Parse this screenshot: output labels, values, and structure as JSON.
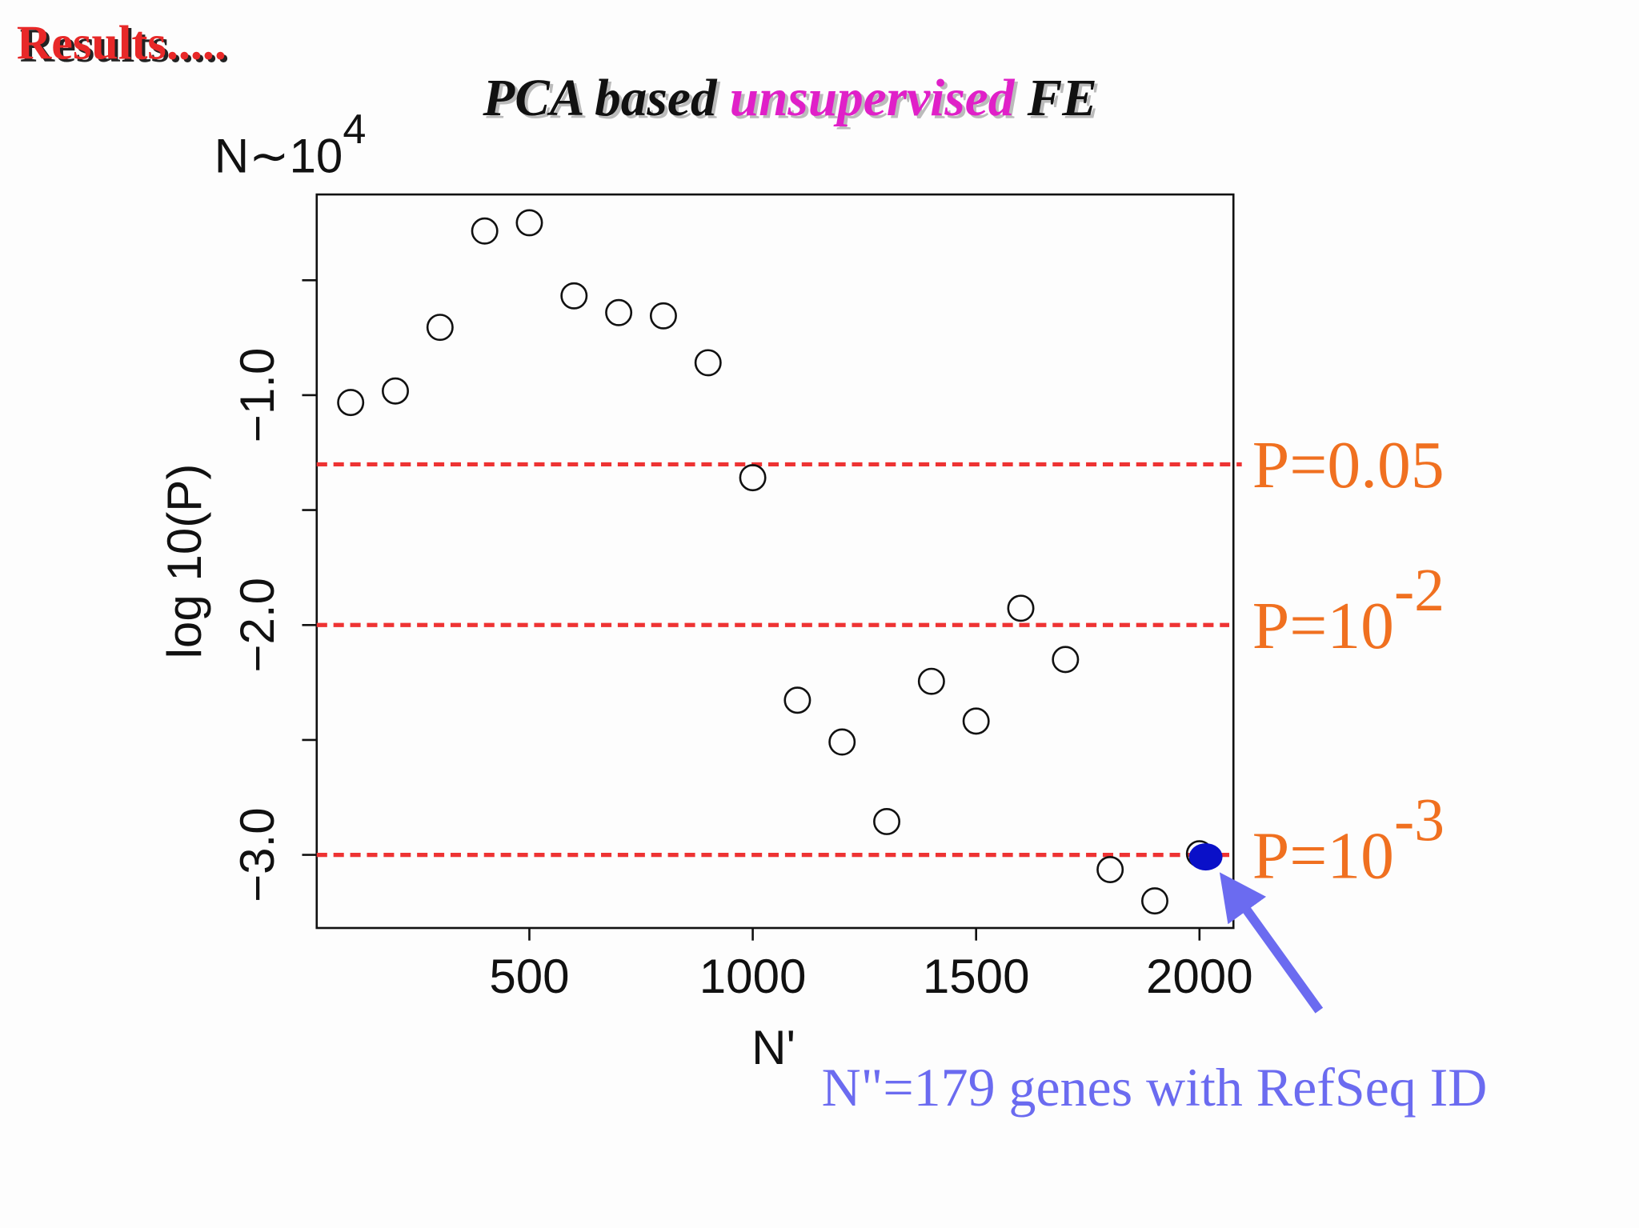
{
  "header": "Results.....",
  "chart_data": {
    "type": "scatter",
    "title_parts": [
      {
        "text": "PCA based ",
        "color": "#111111"
      },
      {
        "text": "unsupervised",
        "color": "#e020c8"
      },
      {
        "text": " FE",
        "color": "#111111"
      }
    ],
    "subtitle": {
      "text": "N∼10",
      "exponent": "4"
    },
    "xlabel": "N'",
    "ylabel": "log 10(P)",
    "x": [
      100,
      200,
      300,
      400,
      500,
      600,
      700,
      800,
      900,
      1000,
      1100,
      1200,
      1300,
      1400,
      1500,
      1600,
      1700,
      1800,
      1900,
      2000
    ],
    "values": [
      -1.032,
      -0.982,
      -0.705,
      -0.286,
      -0.25,
      -0.568,
      -0.641,
      -0.655,
      -0.859,
      -1.359,
      -2.327,
      -2.509,
      -2.855,
      -2.245,
      -2.418,
      -1.927,
      -2.15,
      -3.064,
      -3.2,
      -2.995
    ],
    "marker_color": "#111111",
    "highlight": {
      "index": 19,
      "color": "#0a10c8"
    },
    "xlim": [
      24,
      2076
    ],
    "ylim": [
      -3.318,
      -0.127
    ],
    "xticks": [
      500,
      1000,
      1500,
      2000
    ],
    "yticks": [
      {
        "value": -0.5,
        "label": null
      },
      {
        "value": -1.0,
        "label": "−1.0"
      },
      {
        "value": -1.5,
        "label": null
      },
      {
        "value": -2.0,
        "label": "−2.0"
      },
      {
        "value": -2.5,
        "label": null
      },
      {
        "value": -3.0,
        "label": "−3.0"
      }
    ],
    "hlines": [
      {
        "value": -1.301,
        "label": "P=0.05",
        "exponent": null
      },
      {
        "value": -2,
        "label": "P=10",
        "exponent": "-2"
      },
      {
        "value": -3,
        "label": "P=10",
        "exponent": "-3"
      }
    ],
    "hline_color": "#ee3333",
    "hline_label_color": "#f07020",
    "annotation": {
      "text": "N\"=179 genes with RefSeq ID",
      "color": "#6b6bf0"
    }
  }
}
